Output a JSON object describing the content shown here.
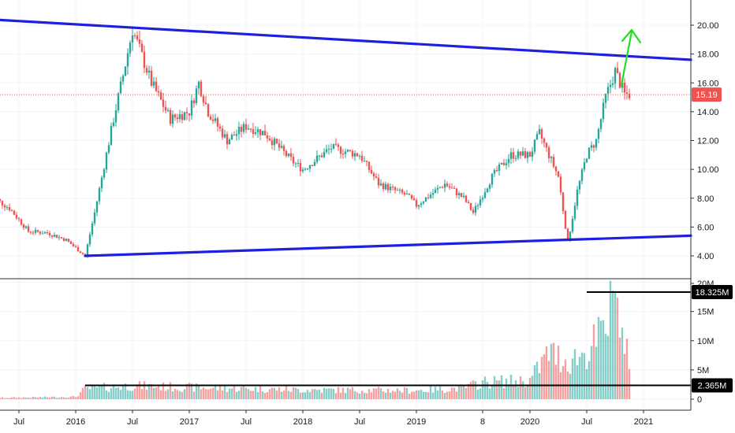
{
  "chart_data": [
    {
      "type": "candlestick",
      "price_axis": {
        "ticks": [
          "20.00",
          "18.00",
          "16.00",
          "14.00",
          "12.00",
          "10.00",
          "8.00",
          "6.00",
          "4.00"
        ],
        "tick_values": [
          20,
          18,
          16,
          14,
          12,
          10,
          8,
          6,
          4
        ],
        "range": [
          3.0,
          21.7
        ],
        "last_price_label": "15.19",
        "last_price": 15.19
      },
      "time_axis": {
        "labels": [
          "Jul",
          "2016",
          "Jul",
          "2017",
          "Jul",
          "2018",
          "Jul",
          "2019",
          "8",
          "2020",
          "Jul",
          "2021"
        ],
        "label_dates": [
          "2015-07",
          "2016-01",
          "2016-07",
          "2017-01",
          "2017-07",
          "2018-01",
          "2018-07",
          "2019-01",
          "2019-08",
          "2020-01",
          "2020-07",
          "2021-01"
        ]
      },
      "price_path": [
        [
          "2015-04",
          8.2
        ],
        [
          "2015-06",
          7.3
        ],
        [
          "2015-08",
          5.7
        ],
        [
          "2015-10",
          5.6
        ],
        [
          "2015-12",
          5.1
        ],
        [
          "2016-02",
          4.0
        ],
        [
          "2016-03",
          7.0
        ],
        [
          "2016-05",
          13.5
        ],
        [
          "2016-06",
          16.5
        ],
        [
          "2016-07",
          19.7
        ],
        [
          "2016-09",
          16.0
        ],
        [
          "2016-11",
          13.5
        ],
        [
          "2017-01",
          14.0
        ],
        [
          "2017-02",
          16.0
        ],
        [
          "2017-03",
          14.0
        ],
        [
          "2017-05",
          12.0
        ],
        [
          "2017-07",
          13.0
        ],
        [
          "2017-09",
          12.5
        ],
        [
          "2017-12",
          10.5
        ],
        [
          "2018-01",
          10.0
        ],
        [
          "2018-04",
          11.5
        ],
        [
          "2018-07",
          11.0
        ],
        [
          "2018-09",
          9.0
        ],
        [
          "2018-12",
          8.2
        ],
        [
          "2019-01",
          7.5
        ],
        [
          "2019-02",
          8.0
        ],
        [
          "2019-04",
          9.0
        ],
        [
          "2019-06",
          8.0
        ],
        [
          "2019-07",
          7.0
        ],
        [
          "2019-09",
          9.5
        ],
        [
          "2019-11",
          11.0
        ],
        [
          "2020-01",
          11.0
        ],
        [
          "2020-02",
          12.5
        ],
        [
          "2020-04",
          9.5
        ],
        [
          "2020-05",
          4.9
        ],
        [
          "2020-06",
          8.5
        ],
        [
          "2020-07",
          11.0
        ],
        [
          "2020-08",
          12.0
        ],
        [
          "2020-09",
          15.0
        ],
        [
          "2020-10",
          16.8
        ],
        [
          "2020-11",
          15.2
        ]
      ],
      "annotations": {
        "upper_trendline": {
          "from": [
            "2015-04",
            20.4
          ],
          "to": [
            "2021-06",
            17.6
          ],
          "color": "#1f1fe0"
        },
        "lower_trendline": {
          "from": [
            "2016-02",
            4.0
          ],
          "to": [
            "2021-06",
            5.4
          ],
          "color": "#1f1fe0"
        },
        "last_price_line_color": "#e74c3c",
        "arrow_color": "#22dd22"
      },
      "colors": {
        "up": "#26a69a",
        "down": "#ef5350"
      }
    },
    {
      "type": "bar",
      "name_axis": "volume",
      "volume_axis": {
        "ticks": [
          "20M",
          "15M",
          "10M",
          "5M",
          "0"
        ],
        "tick_values": [
          20,
          15,
          10,
          5,
          0
        ],
        "unit": "M"
      },
      "levels": [
        {
          "label": "18.325M",
          "value": 18.325
        },
        {
          "label": "2.365M",
          "value": 2.365
        }
      ],
      "volume_path": [
        [
          "2015-04",
          0.2
        ],
        [
          "2016-01",
          0.4
        ],
        [
          "2016-02",
          1.8
        ],
        [
          "2016-07",
          2.3
        ],
        [
          "2017-01",
          2.0
        ],
        [
          "2018-01",
          1.6
        ],
        [
          "2019-01",
          1.5
        ],
        [
          "2019-06",
          1.9
        ],
        [
          "2019-08",
          2.9
        ],
        [
          "2020-01",
          3.2
        ],
        [
          "2020-03",
          8.0
        ],
        [
          "2020-05",
          6.5
        ],
        [
          "2020-07",
          8.0
        ],
        [
          "2020-09",
          12.0
        ],
        [
          "2020-10",
          18.325
        ],
        [
          "2020-11",
          7.5
        ]
      ]
    }
  ]
}
